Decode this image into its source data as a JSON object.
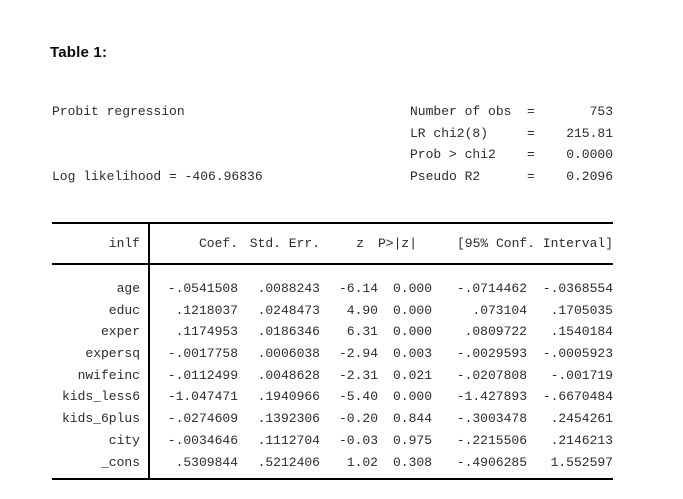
{
  "title": "Table 1:",
  "summary": {
    "model_label": "Probit regression",
    "log_likelihood_label": "Log likelihood = -406.96836",
    "eq": "=",
    "stats": [
      {
        "label": "Number of obs",
        "value": "753"
      },
      {
        "label": "LR chi2(8)",
        "value": "215.81"
      },
      {
        "label": "Prob > chi2",
        "value": "0.0000"
      },
      {
        "label": "Pseudo R2",
        "value": "0.2096"
      }
    ]
  },
  "table": {
    "depvar": "inlf",
    "headers": {
      "coef": "Coef.",
      "stderr": "Std. Err.",
      "z": "z",
      "p": "P>|z|",
      "ci": "[95% Conf. Interval]"
    },
    "rows": [
      {
        "name": "age",
        "coef": "-.0541508",
        "stderr": ".0088243",
        "z": "-6.14",
        "p": "0.000",
        "ci_low": "-.0714462",
        "ci_high": "-.0368554"
      },
      {
        "name": "educ",
        "coef": ".1218037",
        "stderr": ".0248473",
        "z": "4.90",
        "p": "0.000",
        "ci_low": ".073104",
        "ci_high": ".1705035"
      },
      {
        "name": "exper",
        "coef": ".1174953",
        "stderr": ".0186346",
        "z": "6.31",
        "p": "0.000",
        "ci_low": ".0809722",
        "ci_high": ".1540184"
      },
      {
        "name": "expersq",
        "coef": "-.0017758",
        "stderr": ".0006038",
        "z": "-2.94",
        "p": "0.003",
        "ci_low": "-.0029593",
        "ci_high": "-.0005923"
      },
      {
        "name": "nwifeinc",
        "coef": "-.0112499",
        "stderr": ".0048628",
        "z": "-2.31",
        "p": "0.021",
        "ci_low": "-.0207808",
        "ci_high": "-.001719"
      },
      {
        "name": "kids_less6",
        "coef": "-1.047471",
        "stderr": ".1940966",
        "z": "-5.40",
        "p": "0.000",
        "ci_low": "-1.427893",
        "ci_high": "-.6670484"
      },
      {
        "name": "kids_6plus",
        "coef": "-.0274609",
        "stderr": ".1392306",
        "z": "-0.20",
        "p": "0.844",
        "ci_low": "-.3003478",
        "ci_high": ".2454261"
      },
      {
        "name": "city",
        "coef": "-.0034646",
        "stderr": ".1112704",
        "z": "-0.03",
        "p": "0.975",
        "ci_low": "-.2215506",
        "ci_high": ".2146213"
      },
      {
        "name": "_cons",
        "coef": ".5309844",
        "stderr": ".5212406",
        "z": "1.02",
        "p": "0.308",
        "ci_low": "-.4906285",
        "ci_high": "1.552597"
      }
    ]
  }
}
